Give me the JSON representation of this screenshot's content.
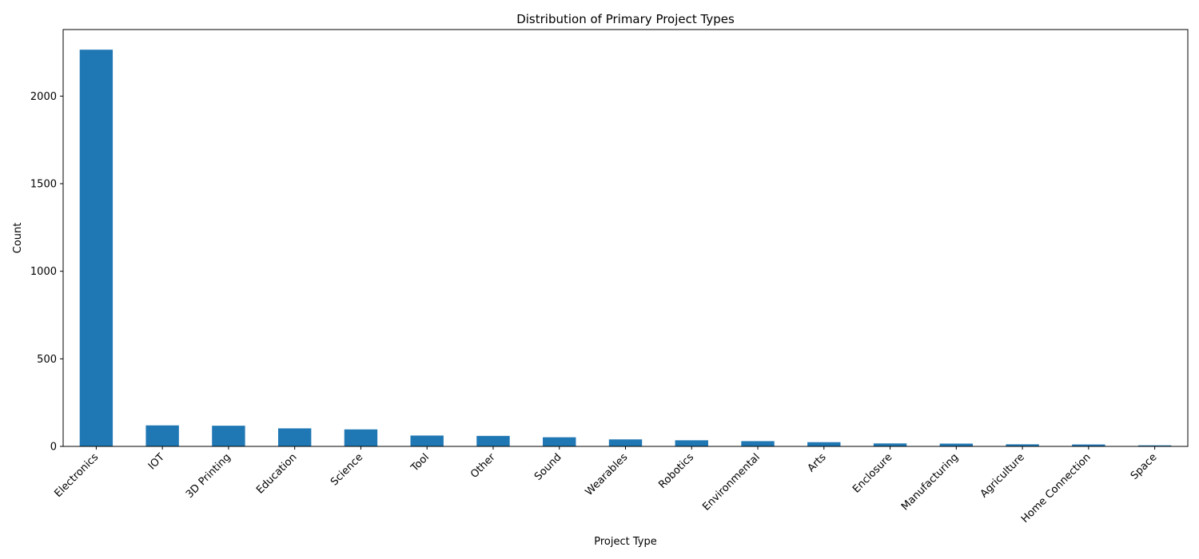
{
  "chart_data": {
    "type": "bar",
    "title": "Distribution of Primary Project Types",
    "xlabel": "Project Type",
    "ylabel": "Count",
    "categories": [
      "Electronics",
      "IOT",
      "3D Printing",
      "Education",
      "Science",
      "Tool",
      "Other",
      "Sound",
      "Wearables",
      "Robotics",
      "Environmental",
      "Arts",
      "Enclosure",
      "Manufacturing",
      "Agriculture",
      "Home Connection",
      "Space"
    ],
    "values": [
      2265,
      120,
      118,
      103,
      97,
      62,
      60,
      52,
      40,
      35,
      30,
      24,
      17,
      16,
      12,
      11,
      6
    ],
    "ylim": [
      0,
      2380
    ],
    "yticks": [
      0,
      500,
      1000,
      1500,
      2000
    ],
    "grid": false,
    "legend": "none",
    "bar_color": "#1f77b4"
  }
}
